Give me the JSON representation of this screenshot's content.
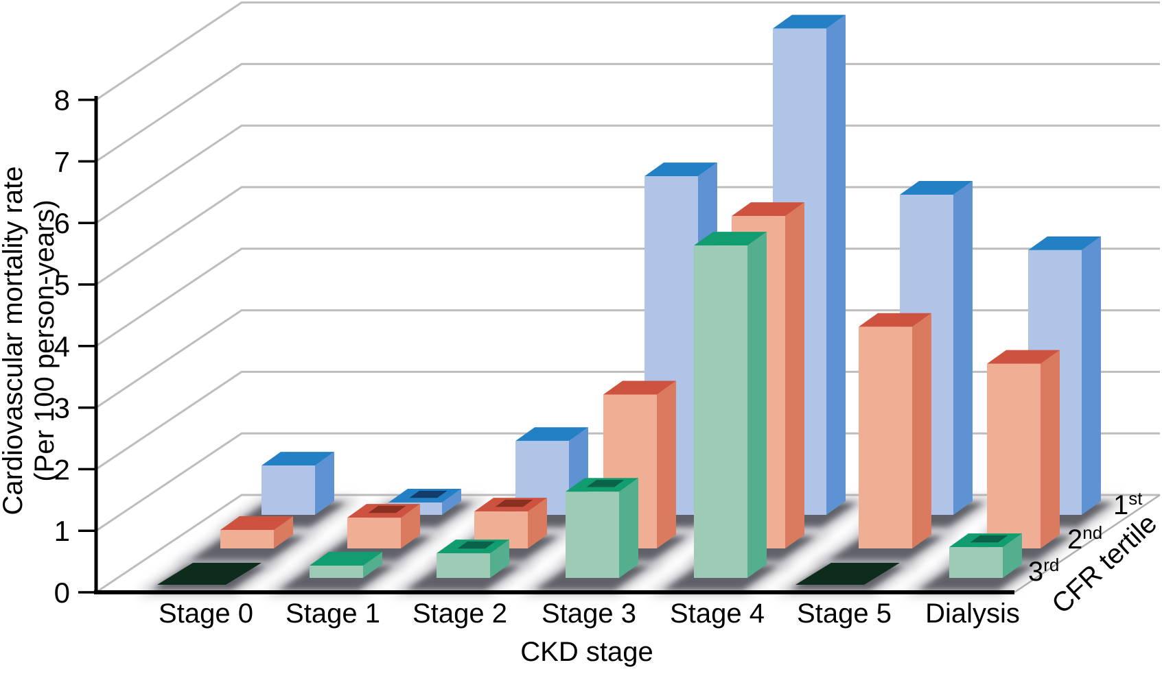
{
  "chart_data": {
    "type": "bar",
    "projection": "3d",
    "xlabel": "CKD stage",
    "ylabel_line1": "Cardiovascular mortality rate",
    "ylabel_line2": "(Per 100 person-years)",
    "depth_axis_label": "CFR tertile",
    "categories": [
      "Stage 0",
      "Stage 1",
      "Stage 2",
      "Stage 3",
      "Stage 4",
      "Stage 5",
      "Dialysis"
    ],
    "y_ticks": [
      0,
      1,
      2,
      3,
      4,
      5,
      6,
      7,
      8
    ],
    "ylim": [
      0,
      8
    ],
    "grid": true,
    "legend_position": "depth-axis-right",
    "series": [
      {
        "name": "1st",
        "label": "1",
        "sup": "st",
        "depth": "back",
        "color_front": "#AFC4E7",
        "color_side": "#5E92D2",
        "color_top": "#2380C4",
        "color_inner": "#123D6B",
        "values": [
          0.8,
          0.2,
          1.2,
          5.5,
          7.9,
          5.2,
          4.3
        ]
      },
      {
        "name": "2nd",
        "label": "2",
        "sup": "nd",
        "depth": "middle",
        "color_front": "#F0AE95",
        "color_side": "#DA7B60",
        "color_top": "#CD5340",
        "color_inner": "#8A3020",
        "values": [
          0.3,
          0.5,
          0.6,
          2.5,
          5.4,
          3.6,
          3.0
        ]
      },
      {
        "name": "3rd",
        "label": "3",
        "sup": "rd",
        "depth": "front",
        "color_front": "#9DCBB6",
        "color_side": "#54AF8E",
        "color_top": "#129D71",
        "color_inner": "#0A6248",
        "values": [
          0,
          0.2,
          0.4,
          1.4,
          5.4,
          0,
          0.5
        ]
      }
    ],
    "open_top_bars": [
      [
        1,
        0
      ],
      [
        1,
        1
      ],
      [
        2,
        1
      ],
      [
        2,
        2
      ],
      [
        3,
        2
      ],
      [
        6,
        2
      ]
    ],
    "colors": {
      "background": "#FFFFFF",
      "gridline": "#BDBDBD",
      "axis": "#000000",
      "floor_edge": "#B0B0B0",
      "shadow_core": "#3F3F4A",
      "shadow_halo": "#90909A",
      "zero_bar": "#0D2C1B"
    }
  }
}
